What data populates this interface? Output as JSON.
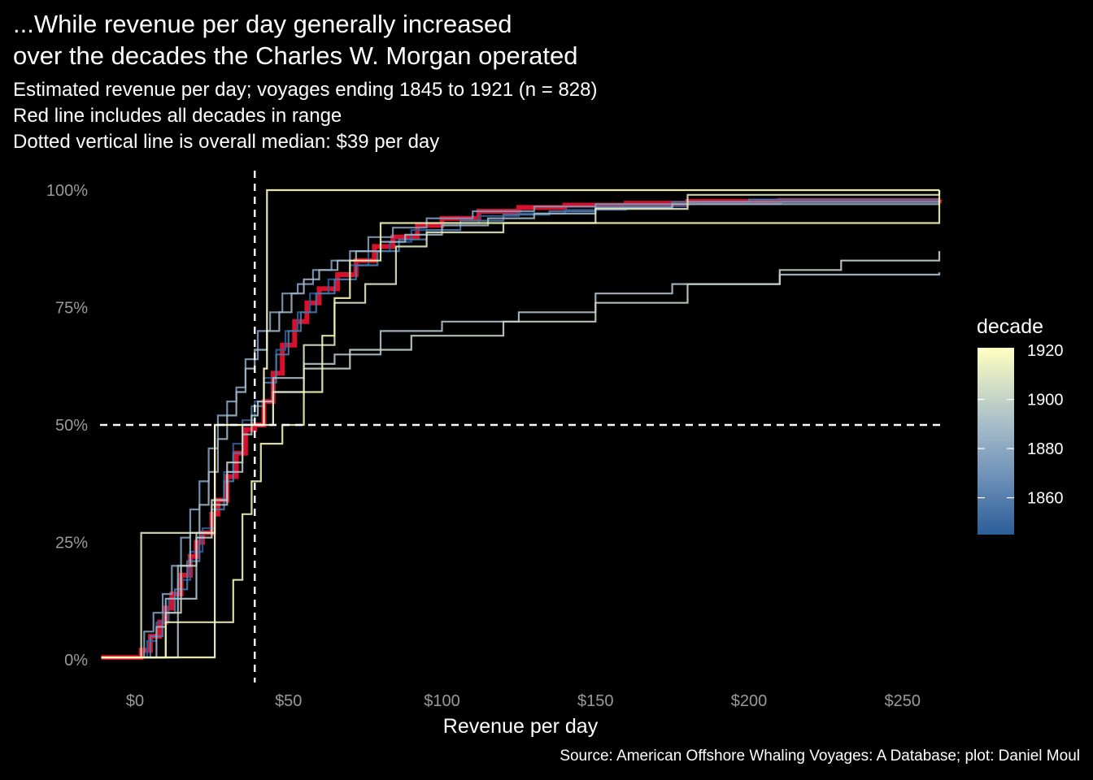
{
  "title_lines": [
    "...While revenue per day generally increased",
    "over the decades the Charles W. Morgan operated"
  ],
  "subtitle_lines": [
    "Estimated revenue per day; voyages ending 1845 to 1921 (n = 828)",
    "Red line includes all decades in range",
    "Dotted vertical line is overall median: $39 per day"
  ],
  "caption": "Source: American Offshore Whaling Voyages: A Database; plot: Daniel Moul",
  "chart_data": {
    "type": "line",
    "subtype": "step (empirical cumulative distribution)",
    "xlabel": "Revenue per day",
    "ylabel": "",
    "xlim": [
      -11,
      262
    ],
    "ylim": [
      -0.04,
      1.0
    ],
    "x_ticks": [
      0,
      50,
      100,
      150,
      200,
      250
    ],
    "x_tick_labels": [
      "$0",
      "$50",
      "$100",
      "$150",
      "$200",
      "$250"
    ],
    "y_ticks": [
      0,
      0.25,
      0.5,
      0.75,
      1.0
    ],
    "y_tick_labels": [
      "0%",
      "25%",
      "50%",
      "75%",
      "100%"
    ],
    "grid": false,
    "reference_lines": {
      "vertical_median_x": 39,
      "horizontal_y": 0.5,
      "style": "dashed",
      "color": "#ffffff"
    },
    "legend": {
      "title": "decade",
      "type": "colorbar",
      "position": "right",
      "range": [
        1845,
        1921
      ],
      "tick_values": [
        1860,
        1880,
        1900,
        1920
      ],
      "tick_labels": [
        "1860",
        "1880",
        "1900",
        "1920"
      ],
      "color_low": "#2c5e98",
      "color_mid_1": "#6b8fb8",
      "color_mid_2": "#a9bfc9",
      "color_high": "#ffffbf"
    },
    "series": [
      {
        "name": "all decades",
        "color": "#d7102c",
        "width": 6,
        "points": [
          [
            -11,
            0.005
          ],
          [
            0,
            0.005
          ],
          [
            2,
            0.02
          ],
          [
            5,
            0.05
          ],
          [
            8,
            0.08
          ],
          [
            10,
            0.11
          ],
          [
            12,
            0.14
          ],
          [
            15,
            0.18
          ],
          [
            18,
            0.22
          ],
          [
            20,
            0.25
          ],
          [
            22,
            0.27
          ],
          [
            25,
            0.31
          ],
          [
            27,
            0.34
          ],
          [
            30,
            0.39
          ],
          [
            33,
            0.44
          ],
          [
            36,
            0.49
          ],
          [
            39,
            0.5
          ],
          [
            42,
            0.55
          ],
          [
            45,
            0.61
          ],
          [
            48,
            0.67
          ],
          [
            52,
            0.72
          ],
          [
            56,
            0.76
          ],
          [
            60,
            0.79
          ],
          [
            66,
            0.82
          ],
          [
            72,
            0.85
          ],
          [
            78,
            0.88
          ],
          [
            84,
            0.9
          ],
          [
            92,
            0.925
          ],
          [
            100,
            0.94
          ],
          [
            112,
            0.955
          ],
          [
            125,
            0.963
          ],
          [
            140,
            0.968
          ],
          [
            160,
            0.972
          ],
          [
            180,
            0.976
          ],
          [
            210,
            0.978
          ],
          [
            262,
            0.98
          ]
        ]
      },
      {
        "decade": 1840,
        "color": "#2c5e98",
        "points": [
          [
            -11,
            0.005
          ],
          [
            1,
            0.005
          ],
          [
            4,
            0.04
          ],
          [
            7,
            0.08
          ],
          [
            11,
            0.13
          ],
          [
            14,
            0.17
          ],
          [
            18,
            0.23
          ],
          [
            22,
            0.28
          ],
          [
            26,
            0.34
          ],
          [
            29,
            0.4
          ],
          [
            32,
            0.46
          ],
          [
            35,
            0.51
          ],
          [
            39,
            0.55
          ],
          [
            42,
            0.6
          ],
          [
            46,
            0.66
          ],
          [
            49,
            0.7
          ],
          [
            53,
            0.74
          ],
          [
            57,
            0.78
          ],
          [
            63,
            0.81
          ],
          [
            70,
            0.84
          ],
          [
            76,
            0.87
          ],
          [
            83,
            0.89
          ],
          [
            90,
            0.915
          ],
          [
            100,
            0.93
          ],
          [
            112,
            0.945
          ],
          [
            125,
            0.95
          ],
          [
            140,
            0.958
          ],
          [
            160,
            0.965
          ],
          [
            180,
            0.97
          ],
          [
            210,
            0.975
          ],
          [
            262,
            0.98
          ]
        ]
      },
      {
        "decade": 1850,
        "color": "#4d78a8",
        "points": [
          [
            -11,
            0.005
          ],
          [
            2,
            0.005
          ],
          [
            5,
            0.05
          ],
          [
            9,
            0.1
          ],
          [
            13,
            0.15
          ],
          [
            17,
            0.21
          ],
          [
            21,
            0.27
          ],
          [
            25,
            0.32
          ],
          [
            29,
            0.38
          ],
          [
            32,
            0.44
          ],
          [
            35,
            0.5
          ],
          [
            38,
            0.54
          ],
          [
            42,
            0.59
          ],
          [
            46,
            0.65
          ],
          [
            50,
            0.7
          ],
          [
            54,
            0.74
          ],
          [
            59,
            0.78
          ],
          [
            65,
            0.81
          ],
          [
            72,
            0.84
          ],
          [
            79,
            0.87
          ],
          [
            86,
            0.895
          ],
          [
            95,
            0.915
          ],
          [
            106,
            0.935
          ],
          [
            120,
            0.948
          ],
          [
            135,
            0.955
          ],
          [
            150,
            0.965
          ],
          [
            175,
            0.975
          ],
          [
            200,
            0.98
          ],
          [
            262,
            0.985
          ]
        ]
      },
      {
        "decade": 1860,
        "color": "#7e9dbd",
        "points": [
          [
            -11,
            0.005
          ],
          [
            1,
            0.005
          ],
          [
            3,
            0.06
          ],
          [
            6,
            0.1
          ],
          [
            9,
            0.14
          ],
          [
            12,
            0.2
          ],
          [
            15,
            0.26
          ],
          [
            18,
            0.32
          ],
          [
            21,
            0.38
          ],
          [
            24,
            0.45
          ],
          [
            27,
            0.52
          ],
          [
            30,
            0.55
          ],
          [
            33,
            0.58
          ],
          [
            36,
            0.64
          ],
          [
            40,
            0.7
          ],
          [
            44,
            0.74
          ],
          [
            48,
            0.78
          ],
          [
            53,
            0.8
          ],
          [
            58,
            0.83
          ],
          [
            64,
            0.85
          ],
          [
            70,
            0.87
          ],
          [
            76,
            0.9
          ],
          [
            84,
            0.92
          ],
          [
            95,
            0.94
          ],
          [
            110,
            0.955
          ],
          [
            130,
            0.965
          ],
          [
            150,
            0.97
          ],
          [
            180,
            0.975
          ],
          [
            262,
            0.98
          ]
        ]
      },
      {
        "decade": 1870,
        "color": "#9fb4c6",
        "points": [
          [
            -11,
            0.005
          ],
          [
            5,
            0.005
          ],
          [
            7,
            0.07
          ],
          [
            10,
            0.13
          ],
          [
            14,
            0.2
          ],
          [
            18,
            0.27
          ],
          [
            21,
            0.33
          ],
          [
            24,
            0.4
          ],
          [
            27,
            0.47
          ],
          [
            30,
            0.52
          ],
          [
            33,
            0.57
          ],
          [
            36,
            0.62
          ],
          [
            39,
            0.66
          ],
          [
            43,
            0.7
          ],
          [
            47,
            0.74
          ],
          [
            51,
            0.78
          ],
          [
            55,
            0.81
          ],
          [
            60,
            0.83
          ],
          [
            66,
            0.85
          ],
          [
            72,
            0.87
          ],
          [
            80,
            0.89
          ],
          [
            88,
            0.905
          ],
          [
            100,
            0.925
          ],
          [
            115,
            0.94
          ],
          [
            130,
            0.95
          ],
          [
            150,
            0.962
          ],
          [
            175,
            0.97
          ],
          [
            262,
            0.975
          ]
        ]
      },
      {
        "decade": 1880,
        "color": "#b0c0cc",
        "points": [
          [
            -11,
            0.005
          ],
          [
            8,
            0.005
          ],
          [
            14,
            0.13
          ],
          [
            20,
            0.27
          ],
          [
            25,
            0.33
          ],
          [
            30,
            0.4
          ],
          [
            35,
            0.48
          ],
          [
            38,
            0.52
          ],
          [
            40,
            0.55
          ],
          [
            45,
            0.6
          ],
          [
            55,
            0.63
          ],
          [
            65,
            0.65
          ],
          [
            80,
            0.7
          ],
          [
            100,
            0.72
          ],
          [
            125,
            0.74
          ],
          [
            150,
            0.78
          ],
          [
            175,
            0.8
          ],
          [
            210,
            0.82
          ],
          [
            262,
            0.825
          ]
        ]
      },
      {
        "decade": 1890,
        "color": "#c5d1c7",
        "points": [
          [
            -11,
            0.005
          ],
          [
            5,
            0.005
          ],
          [
            10,
            0.1
          ],
          [
            15,
            0.2
          ],
          [
            20,
            0.26
          ],
          [
            25,
            0.34
          ],
          [
            30,
            0.42
          ],
          [
            35,
            0.5
          ],
          [
            45,
            0.57
          ],
          [
            55,
            0.62
          ],
          [
            70,
            0.66
          ],
          [
            90,
            0.69
          ],
          [
            120,
            0.72
          ],
          [
            150,
            0.76
          ],
          [
            180,
            0.8
          ],
          [
            210,
            0.83
          ],
          [
            230,
            0.85
          ],
          [
            262,
            0.87
          ]
        ]
      },
      {
        "decade": 1900,
        "color": "#dce4bf",
        "points": [
          [
            -11,
            0.005
          ],
          [
            0,
            0.005
          ],
          [
            2,
            0.27
          ],
          [
            5,
            0.27
          ],
          [
            10,
            0.27
          ],
          [
            25,
            0.27
          ],
          [
            26,
            0.5
          ],
          [
            35,
            0.5
          ],
          [
            45,
            0.57
          ],
          [
            55,
            0.67
          ],
          [
            65,
            0.76
          ],
          [
            75,
            0.8
          ],
          [
            85,
            0.88
          ],
          [
            95,
            0.91
          ],
          [
            120,
            0.93
          ],
          [
            150,
            0.96
          ],
          [
            180,
            0.99
          ],
          [
            230,
            0.99
          ],
          [
            262,
            1.0
          ]
        ]
      },
      {
        "decade": 1910,
        "color": "#f0f4b0",
        "points": [
          [
            -11,
            0.005
          ],
          [
            5,
            0.005
          ],
          [
            10,
            0.08
          ],
          [
            25,
            0.08
          ],
          [
            31,
            0.08
          ],
          [
            32,
            0.17
          ],
          [
            35,
            0.31
          ],
          [
            38,
            0.38
          ],
          [
            41,
            0.46
          ],
          [
            48,
            0.5
          ],
          [
            55,
            0.57
          ],
          [
            61,
            0.69
          ],
          [
            65,
            0.77
          ],
          [
            70,
            0.85
          ],
          [
            80,
            0.93
          ],
          [
            180,
            0.93
          ],
          [
            262,
            1.0
          ]
        ]
      },
      {
        "decade": 1920,
        "color": "#ffffbf",
        "points": [
          [
            -11,
            0.005
          ],
          [
            0,
            0.005
          ],
          [
            25,
            0.005
          ],
          [
            26,
            0.5
          ],
          [
            41,
            0.5
          ],
          [
            42,
            0.62
          ],
          [
            43,
            1.0
          ],
          [
            262,
            1.0
          ]
        ]
      }
    ]
  }
}
